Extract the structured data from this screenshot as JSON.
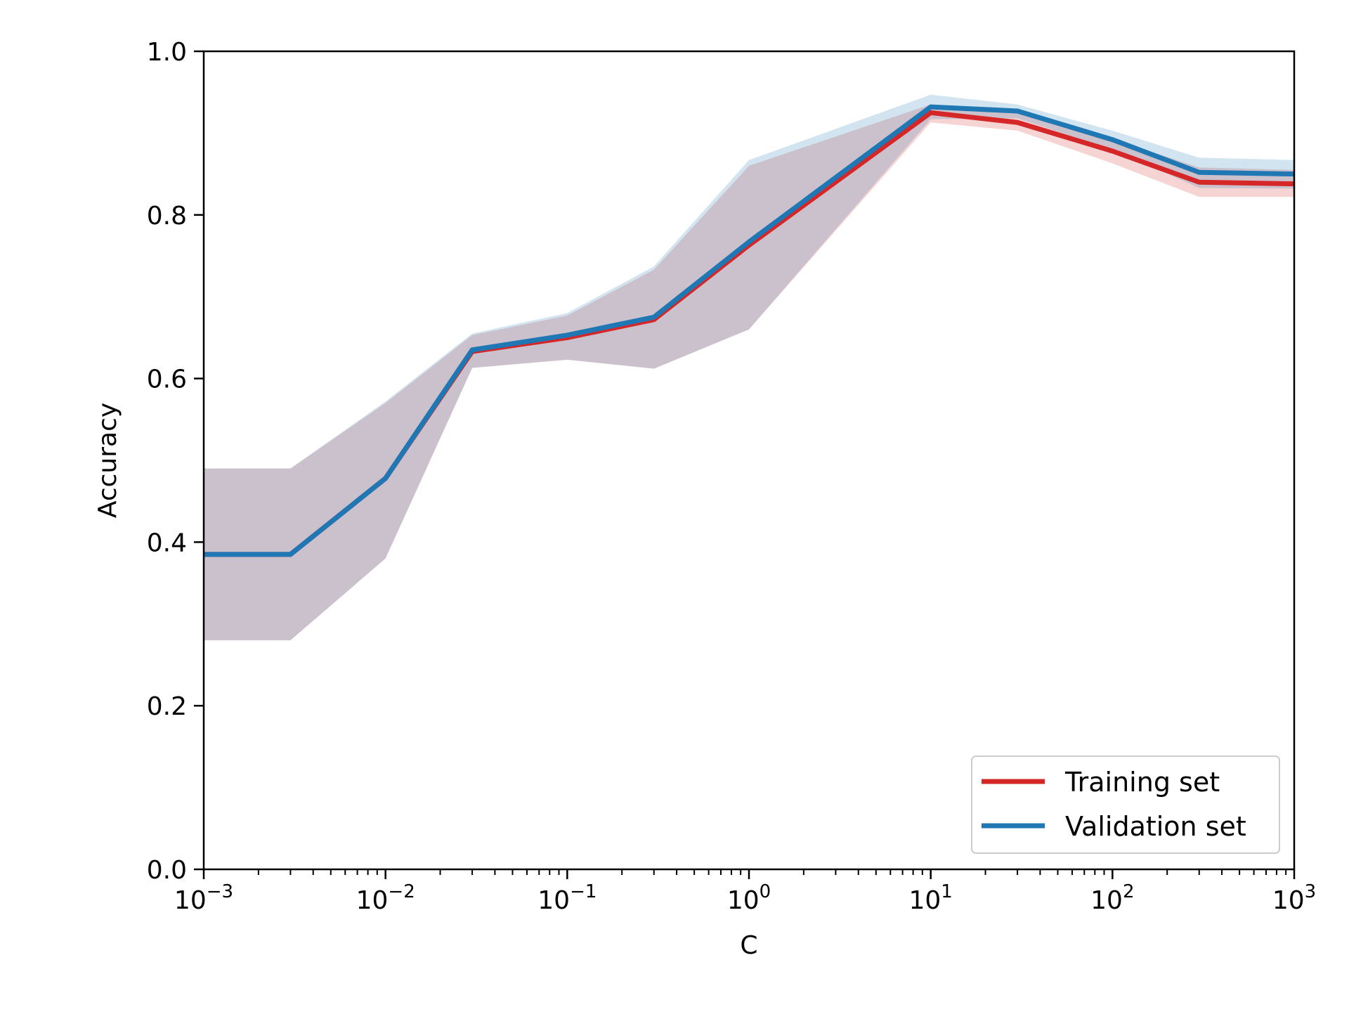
{
  "chart_data": {
    "type": "line",
    "xlabel": "C",
    "ylabel": "Accuracy",
    "xscale": "log",
    "xlim": [
      0.001,
      1000
    ],
    "ylim": [
      0.0,
      1.0
    ],
    "grid": false,
    "legend_position": "bottom-right",
    "x": [
      0.001,
      0.003,
      0.01,
      0.03,
      0.1,
      0.3,
      1,
      10,
      30,
      100,
      300,
      1000
    ],
    "x_ticks": [
      {
        "value": 0.001,
        "base": "10",
        "exp": "−3"
      },
      {
        "value": 0.01,
        "base": "10",
        "exp": "−2"
      },
      {
        "value": 0.1,
        "base": "10",
        "exp": "−1"
      },
      {
        "value": 1,
        "base": "10",
        "exp": "0"
      },
      {
        "value": 10,
        "base": "10",
        "exp": "1"
      },
      {
        "value": 100,
        "base": "10",
        "exp": "2"
      },
      {
        "value": 1000,
        "base": "10",
        "exp": "3"
      }
    ],
    "y_ticks": [
      {
        "value": 0.0,
        "label": "0.0"
      },
      {
        "value": 0.2,
        "label": "0.2"
      },
      {
        "value": 0.4,
        "label": "0.4"
      },
      {
        "value": 0.6,
        "label": "0.6"
      },
      {
        "value": 0.8,
        "label": "0.8"
      },
      {
        "value": 1.0,
        "label": "1.0"
      }
    ],
    "series": [
      {
        "name": "Training set",
        "color": "#d62728",
        "values": [
          0.385,
          0.385,
          0.478,
          0.633,
          0.65,
          0.672,
          0.763,
          0.925,
          0.913,
          0.878,
          0.84,
          0.838
        ],
        "band_upper": [
          0.49,
          0.49,
          0.57,
          0.653,
          0.677,
          0.733,
          0.86,
          0.935,
          0.925,
          0.893,
          0.858,
          0.855
        ],
        "band_lower": [
          0.28,
          0.28,
          0.38,
          0.613,
          0.623,
          0.612,
          0.66,
          0.913,
          0.903,
          0.863,
          0.822,
          0.822
        ]
      },
      {
        "name": "Validation set",
        "color": "#1f77b4",
        "values": [
          0.385,
          0.385,
          0.478,
          0.635,
          0.653,
          0.675,
          0.767,
          0.932,
          0.927,
          0.892,
          0.852,
          0.85
        ],
        "band_upper": [
          0.49,
          0.49,
          0.572,
          0.655,
          0.68,
          0.737,
          0.867,
          0.947,
          0.935,
          0.903,
          0.87,
          0.867
        ],
        "band_lower": [
          0.28,
          0.28,
          0.38,
          0.613,
          0.623,
          0.612,
          0.66,
          0.917,
          0.918,
          0.88,
          0.833,
          0.832
        ]
      }
    ]
  }
}
